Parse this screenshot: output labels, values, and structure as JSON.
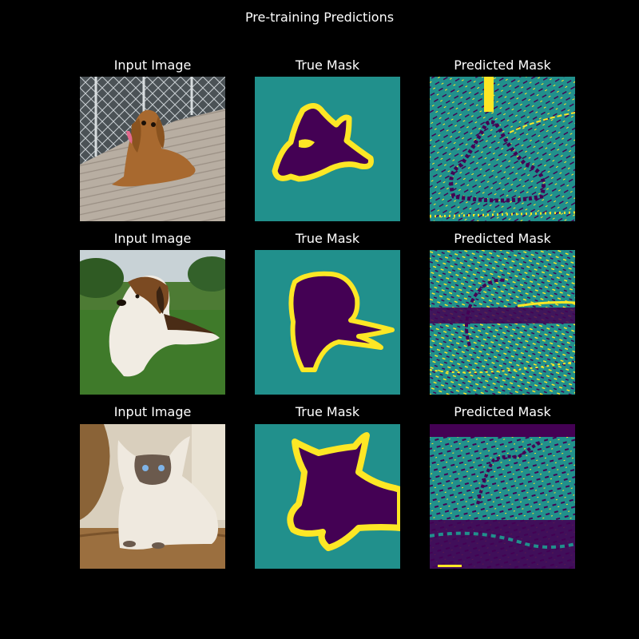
{
  "figure": {
    "title": "Pre-training Predictions"
  },
  "colors": {
    "background": "#000000",
    "text": "#ffffff",
    "mask_background": "#21908c",
    "mask_foreground": "#440154",
    "mask_border": "#fde725"
  },
  "rows": [
    {
      "subject": "cocker spaniel",
      "input_title": "Input Image",
      "true_title": "True Mask",
      "pred_title": "Predicted Mask"
    },
    {
      "subject": "beagle",
      "input_title": "Input Image",
      "true_title": "True Mask",
      "pred_title": "Predicted Mask"
    },
    {
      "subject": "siamese cat",
      "input_title": "Input Image",
      "true_title": "True Mask",
      "pred_title": "Predicted Mask"
    }
  ]
}
